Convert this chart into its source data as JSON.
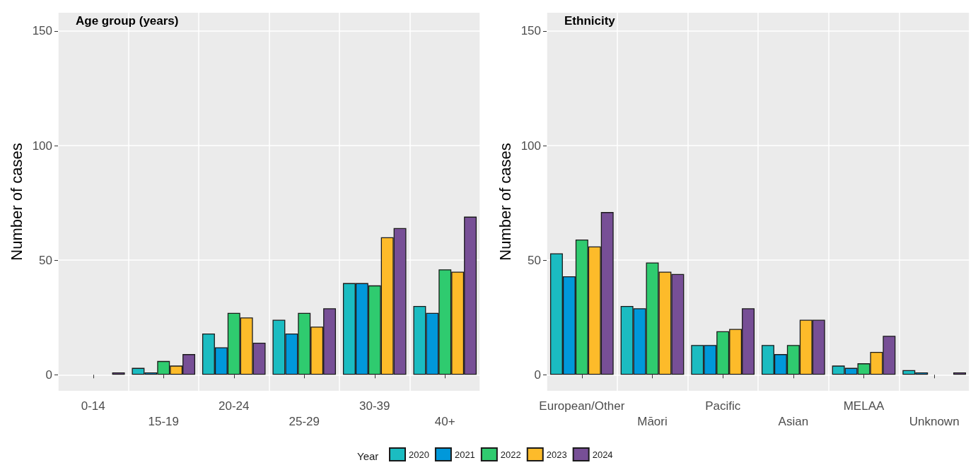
{
  "chart_data": [
    {
      "type": "bar",
      "title": "Age group (years)",
      "ylabel": "Number of cases",
      "categories": [
        "0-14",
        "15-19",
        "20-24",
        "25-29",
        "30-39",
        "40+"
      ],
      "series": [
        {
          "color": "#1bbcc1",
          "values": [
            null,
            3,
            18,
            24,
            40,
            30
          ]
        },
        {
          "color": "#0098da",
          "values": [
            null,
            1,
            12,
            18,
            40,
            27
          ]
        },
        {
          "color": "#2fcb6f",
          "values": [
            null,
            6,
            27,
            27,
            39,
            46
          ]
        },
        {
          "color": "#fdbb2a",
          "values": [
            null,
            4,
            25,
            21,
            60,
            45
          ]
        },
        {
          "color": "#774f96",
          "values": [
            1,
            9,
            14,
            29,
            64,
            69
          ]
        }
      ],
      "ylim": [
        -7,
        158
      ],
      "yticks": [
        0,
        50,
        100,
        150
      ],
      "grid": true
    },
    {
      "type": "bar",
      "title": "Ethnicity",
      "ylabel": "Number of cases",
      "legend_title": "Year",
      "categories": [
        "European/Other",
        "Māori",
        "Pacific",
        "Asian",
        "MELAA",
        "Unknown"
      ],
      "series": [
        {
          "name": "2020",
          "color": "#1bbcc1",
          "values": [
            53,
            30,
            13,
            13,
            4,
            2
          ]
        },
        {
          "name": "2021",
          "color": "#0098da",
          "values": [
            43,
            29,
            13,
            9,
            3,
            1
          ]
        },
        {
          "name": "2022",
          "color": "#2fcb6f",
          "values": [
            59,
            49,
            19,
            13,
            5,
            null
          ]
        },
        {
          "name": "2023",
          "color": "#fdbb2a",
          "values": [
            56,
            45,
            20,
            24,
            10,
            null
          ]
        },
        {
          "name": "2024",
          "color": "#774f96",
          "values": [
            71,
            44,
            29,
            24,
            17,
            1
          ]
        }
      ],
      "ylim": [
        -7,
        158
      ],
      "yticks": [
        0,
        50,
        100,
        150
      ],
      "grid": true,
      "legend": "bottom"
    }
  ]
}
